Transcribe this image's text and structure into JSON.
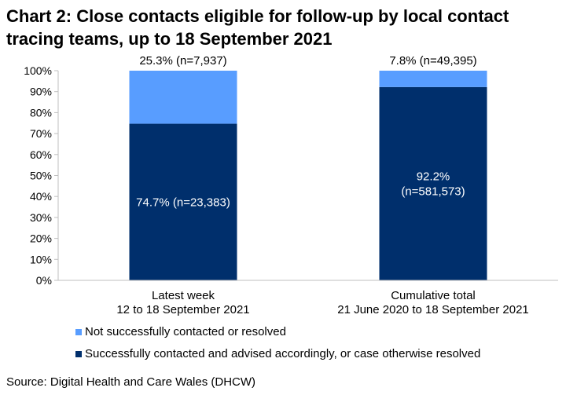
{
  "title": "Chart 2: Close contacts eligible for follow-up by local contact tracing teams, up to 18 September 2021",
  "source": "Source: Digital Health and Care Wales (DHCW)",
  "colors": {
    "not_contacted": "#589dff",
    "contacted": "#002f6c",
    "axis": "#bfbfbf"
  },
  "legend": [
    {
      "label": "Not successfully contacted or resolved",
      "color": "#589dff"
    },
    {
      "label": "Successfully contacted and advised accordingly, or case otherwise resolved",
      "color": "#002f6c"
    }
  ],
  "chart_data": {
    "type": "bar",
    "stacked": true,
    "percent_stacked": true,
    "title": "Chart 2: Close contacts eligible for follow-up by local contact tracing teams, up to 18 September 2021",
    "categories": [
      [
        "Latest week",
        "12 to 18 September 2021"
      ],
      [
        "Cumulative total",
        "21 June 2020 to 18 September 2021"
      ]
    ],
    "series": [
      {
        "name": "Successfully contacted and advised accordingly, or case otherwise resolved",
        "color": "#002f6c",
        "values": [
          74.7,
          92.2
        ],
        "labels": [
          [
            "74.7% (n=23,383)"
          ],
          [
            "92.2%",
            "(n=581,573)"
          ]
        ]
      },
      {
        "name": "Not successfully contacted or resolved",
        "color": "#589dff",
        "values": [
          25.3,
          7.8
        ],
        "labels": [
          [
            "25.3% (n=7,937)"
          ],
          [
            "7.8% (n=49,395)"
          ]
        ]
      }
    ],
    "ylim": [
      0,
      100
    ],
    "yticks": [
      "0%",
      "10%",
      "20%",
      "30%",
      "40%",
      "50%",
      "60%",
      "70%",
      "80%",
      "90%",
      "100%"
    ],
    "grid": false,
    "legend_position": "bottom"
  }
}
